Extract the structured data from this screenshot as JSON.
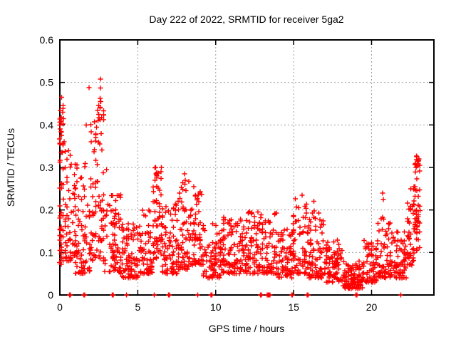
{
  "window": {
    "background": "#ffffff"
  },
  "chart_data": {
    "type": "scatter",
    "title": "Day 222 of 2022, SRMTID for receiver 5ga2",
    "xlabel": "GPS time / hours",
    "ylabel": "SRMTID / TECUs",
    "xlim": [
      0,
      24
    ],
    "ylim": [
      0,
      0.6
    ],
    "xticks": [
      0,
      5,
      10,
      15,
      20
    ],
    "yticks": [
      0,
      0.1,
      0.2,
      0.3,
      0.4,
      0.5,
      0.6
    ],
    "grid": {
      "enabled": true,
      "color": "#9e9e9e",
      "dashed": true
    },
    "legend": null,
    "marker": {
      "shape": "plus",
      "color": "#ff0000",
      "size": 7,
      "stroke_width": 1.4
    },
    "axis_color": "#000000",
    "background_color": "#ffffff",
    "seed": 20220222,
    "x_slot_hours": 0.1,
    "density_segments": [
      {
        "x0": 0.0,
        "x1": 0.35,
        "n": 50,
        "ymin": 0.07,
        "ymax": 0.45,
        "bias": 1.3
      },
      {
        "x0": 0.35,
        "x1": 1.0,
        "n": 55,
        "ymin": 0.08,
        "ymax": 0.36,
        "bias": 1.6
      },
      {
        "x0": 1.0,
        "x1": 2.0,
        "n": 80,
        "ymin": 0.05,
        "ymax": 0.31,
        "bias": 1.8
      },
      {
        "x0": 2.0,
        "x1": 2.9,
        "n": 85,
        "ymin": 0.08,
        "ymax": 0.47,
        "bias": 1.5
      },
      {
        "x0": 2.9,
        "x1": 4.0,
        "n": 80,
        "ymin": 0.05,
        "ymax": 0.24,
        "bias": 1.7
      },
      {
        "x0": 4.0,
        "x1": 5.2,
        "n": 85,
        "ymin": 0.04,
        "ymax": 0.17,
        "bias": 1.7
      },
      {
        "x0": 5.2,
        "x1": 6.0,
        "n": 60,
        "ymin": 0.05,
        "ymax": 0.2,
        "bias": 1.8
      },
      {
        "x0": 6.0,
        "x1": 6.6,
        "n": 55,
        "ymin": 0.08,
        "ymax": 0.3,
        "bias": 1.4
      },
      {
        "x0": 6.6,
        "x1": 7.6,
        "n": 75,
        "ymin": 0.05,
        "ymax": 0.22,
        "bias": 1.8
      },
      {
        "x0": 7.6,
        "x1": 8.4,
        "n": 65,
        "ymin": 0.06,
        "ymax": 0.28,
        "bias": 1.7
      },
      {
        "x0": 8.4,
        "x1": 9.2,
        "n": 65,
        "ymin": 0.07,
        "ymax": 0.26,
        "bias": 1.7
      },
      {
        "x0": 9.2,
        "x1": 10.4,
        "n": 80,
        "ymin": 0.04,
        "ymax": 0.17,
        "bias": 1.7
      },
      {
        "x0": 10.4,
        "x1": 12.0,
        "n": 110,
        "ymin": 0.05,
        "ymax": 0.19,
        "bias": 1.6
      },
      {
        "x0": 12.0,
        "x1": 14.0,
        "n": 140,
        "ymin": 0.05,
        "ymax": 0.2,
        "bias": 1.7
      },
      {
        "x0": 14.0,
        "x1": 15.0,
        "n": 70,
        "ymin": 0.04,
        "ymax": 0.16,
        "bias": 1.6
      },
      {
        "x0": 15.0,
        "x1": 16.0,
        "n": 75,
        "ymin": 0.05,
        "ymax": 0.23,
        "bias": 1.9
      },
      {
        "x0": 16.0,
        "x1": 17.0,
        "n": 75,
        "ymin": 0.04,
        "ymax": 0.2,
        "bias": 1.9
      },
      {
        "x0": 17.0,
        "x1": 18.2,
        "n": 85,
        "ymin": 0.03,
        "ymax": 0.13,
        "bias": 1.6
      },
      {
        "x0": 18.2,
        "x1": 19.5,
        "n": 110,
        "ymin": 0.015,
        "ymax": 0.08,
        "bias": 1.4
      },
      {
        "x0": 19.5,
        "x1": 20.4,
        "n": 65,
        "ymin": 0.03,
        "ymax": 0.13,
        "bias": 1.6
      },
      {
        "x0": 20.4,
        "x1": 21.3,
        "n": 65,
        "ymin": 0.04,
        "ymax": 0.19,
        "bias": 1.9
      },
      {
        "x0": 21.3,
        "x1": 22.3,
        "n": 70,
        "ymin": 0.04,
        "ymax": 0.15,
        "bias": 1.6
      },
      {
        "x0": 22.3,
        "x1": 22.8,
        "n": 45,
        "ymin": 0.07,
        "ymax": 0.26,
        "bias": 1.3
      },
      {
        "x0": 22.8,
        "x1": 23.2,
        "n": 50,
        "ymin": 0.1,
        "ymax": 0.33,
        "bias": 1.1
      }
    ],
    "outliers": [
      [
        0.12,
        0.465
      ],
      [
        0.18,
        0.43
      ],
      [
        0.22,
        0.415
      ],
      [
        0.1,
        0.385
      ],
      [
        0.28,
        0.36
      ],
      [
        0.15,
        0.335
      ],
      [
        1.7,
        0.4
      ],
      [
        1.87,
        0.488
      ],
      [
        2.6,
        0.508
      ],
      [
        2.6,
        0.487
      ],
      [
        2.62,
        0.455
      ],
      [
        2.58,
        0.44
      ],
      [
        2.5,
        0.425
      ],
      [
        2.45,
        0.41
      ],
      [
        2.35,
        0.395
      ],
      [
        2.65,
        0.38
      ],
      [
        2.3,
        0.37
      ],
      [
        2.55,
        0.355
      ],
      [
        3.0,
        0.295
      ],
      [
        6.15,
        0.3
      ],
      [
        6.18,
        0.285
      ],
      [
        6.1,
        0.27
      ],
      [
        8.0,
        0.285
      ],
      [
        8.05,
        0.27
      ],
      [
        8.6,
        0.255
      ],
      [
        15.55,
        0.235
      ],
      [
        16.3,
        0.22
      ],
      [
        20.7,
        0.24
      ],
      [
        20.75,
        0.225
      ],
      [
        22.85,
        0.3
      ],
      [
        22.9,
        0.325
      ],
      [
        22.95,
        0.315
      ],
      [
        23.0,
        0.305
      ],
      [
        23.05,
        0.32
      ]
    ],
    "zero_marks": [
      0.62,
      0.68,
      1.54,
      1.6,
      3.37,
      3.43,
      4.28,
      6.05,
      6.97,
      7.03,
      8.85,
      9.7,
      9.76,
      12.87,
      12.93,
      13.3,
      13.36,
      13.42,
      13.48,
      14.87,
      14.93,
      15.87,
      15.93,
      19.0,
      19.06,
      21.88
    ]
  }
}
